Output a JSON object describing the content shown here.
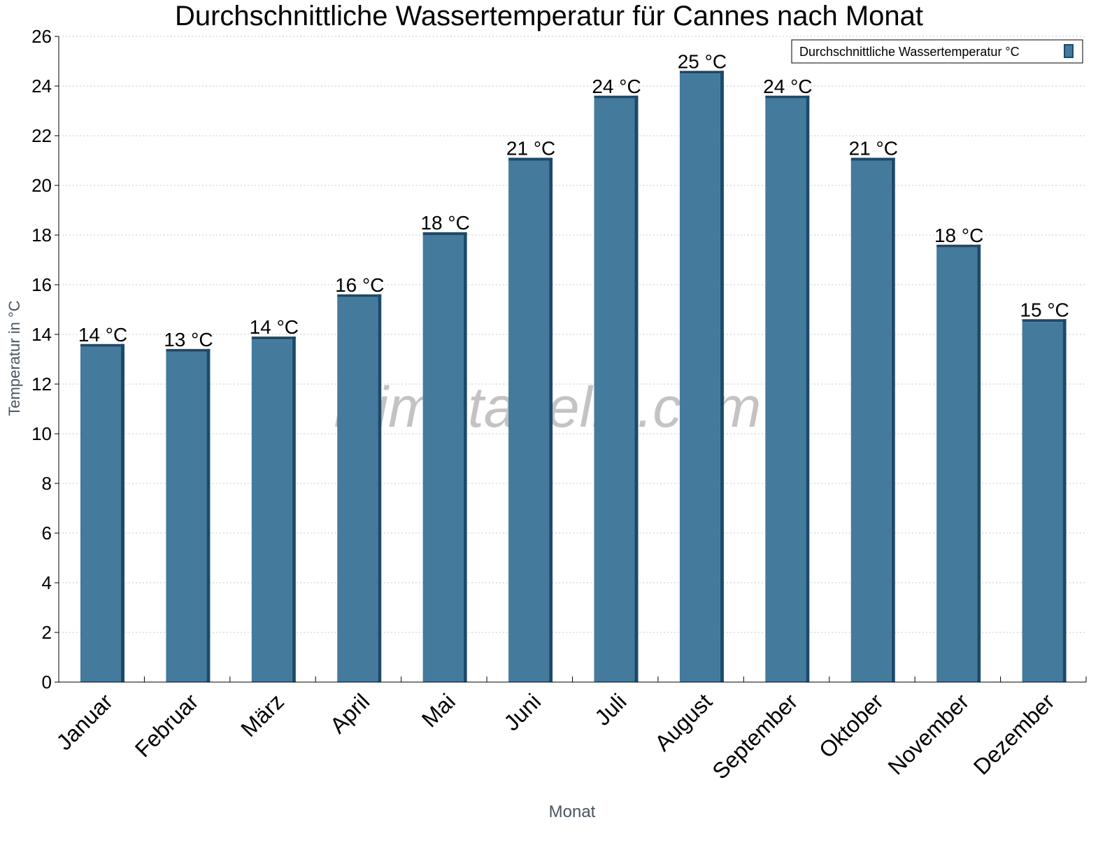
{
  "chart_data": {
    "type": "bar",
    "title": "Durchschnittliche Wassertemperatur für Cannes nach Monat",
    "xlabel": "Monat",
    "ylabel": "Temperatur in °C",
    "ylim": [
      0,
      26
    ],
    "yticks": [
      0,
      2,
      4,
      6,
      8,
      10,
      12,
      14,
      16,
      18,
      20,
      22,
      24,
      26
    ],
    "grid": "horizontal dotted",
    "legend_position": "top-right",
    "categories": [
      "Januar",
      "Februar",
      "März",
      "April",
      "Mai",
      "Juni",
      "Juli",
      "August",
      "September",
      "Oktober",
      "November",
      "Dezember"
    ],
    "series": [
      {
        "name": "Durchschnittliche Wassertemperatur °C",
        "color": "#447a9c",
        "values": [
          13.5,
          13.3,
          13.8,
          15.5,
          18,
          21,
          23.5,
          24.5,
          23.5,
          21,
          17.5,
          14.5
        ],
        "data_labels": [
          "14 °C",
          "13 °C",
          "14 °C",
          "16 °C",
          "18 °C",
          "21 °C",
          "24 °C",
          "25 °C",
          "24 °C",
          "21 °C",
          "18 °C",
          "15 °C"
        ]
      }
    ],
    "watermark": "klimatabelle.com"
  }
}
